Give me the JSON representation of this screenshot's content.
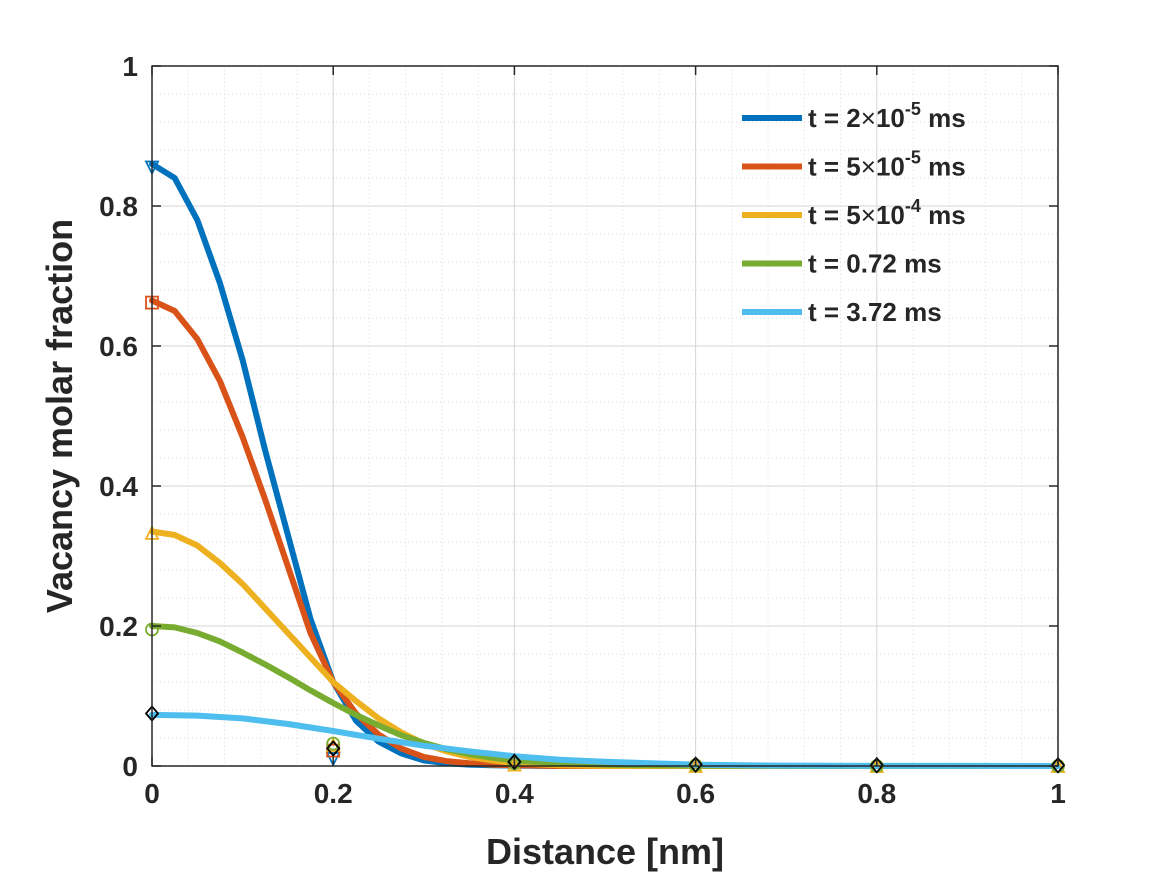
{
  "chart_data": {
    "type": "line",
    "title": "",
    "xlabel": "Distance [nm]",
    "ylabel": "Vacancy molar fraction",
    "xlim": [
      0,
      1
    ],
    "ylim": [
      0,
      1
    ],
    "grid": true,
    "minor_grid": true,
    "legend_position": "top-right",
    "x_ticks": [
      {
        "value": 0,
        "label": "0"
      },
      {
        "value": 0.2,
        "label": "0.2"
      },
      {
        "value": 0.4,
        "label": "0.4"
      },
      {
        "value": 0.6,
        "label": "0.6"
      },
      {
        "value": 0.8,
        "label": "0.8"
      },
      {
        "value": 1,
        "label": "1"
      }
    ],
    "y_ticks": [
      {
        "value": 0,
        "label": "0"
      },
      {
        "value": 0.2,
        "label": "0.2"
      },
      {
        "value": 0.4,
        "label": "0.4"
      },
      {
        "value": 0.6,
        "label": "0.6"
      },
      {
        "value": 0.8,
        "label": "0.8"
      },
      {
        "value": 1,
        "label": "1"
      }
    ],
    "series": [
      {
        "name": "t = 2×10^-5 ms",
        "legend_prefix": "t = 2",
        "legend_times": "×",
        "legend_base": "10",
        "legend_exp": "-5",
        "legend_suffix": " ms",
        "color": "#0072BD",
        "marker": "triangle-down",
        "x": [
          0,
          0.025,
          0.05,
          0.075,
          0.1,
          0.125,
          0.15,
          0.175,
          0.2,
          0.225,
          0.25,
          0.275,
          0.3,
          0.325,
          0.35,
          0.375,
          0.4,
          0.45,
          0.5,
          0.6,
          0.7,
          0.8,
          0.9,
          1.0
        ],
        "y": [
          0.86,
          0.84,
          0.78,
          0.69,
          0.58,
          0.45,
          0.33,
          0.21,
          0.12,
          0.065,
          0.035,
          0.018,
          0.008,
          0.004,
          0.002,
          0.001,
          0.0005,
          0,
          0,
          0,
          0,
          0,
          0,
          0
        ],
        "marker_x": [
          0,
          0.2
        ],
        "marker_y": [
          0.855,
          0.01
        ]
      },
      {
        "name": "t = 5×10^-5 ms",
        "legend_prefix": "t = 5",
        "legend_times": "×",
        "legend_base": "10",
        "legend_exp": "-5",
        "legend_suffix": " ms",
        "color": "#D95319",
        "marker": "square",
        "x": [
          0,
          0.025,
          0.05,
          0.075,
          0.1,
          0.125,
          0.15,
          0.175,
          0.2,
          0.225,
          0.25,
          0.275,
          0.3,
          0.325,
          0.35,
          0.375,
          0.4,
          0.45,
          0.5,
          0.6,
          0.7,
          0.8,
          0.9,
          1.0
        ],
        "y": [
          0.665,
          0.65,
          0.61,
          0.55,
          0.47,
          0.38,
          0.285,
          0.19,
          0.12,
          0.075,
          0.045,
          0.025,
          0.013,
          0.007,
          0.004,
          0.002,
          0.001,
          0,
          0,
          0,
          0,
          0,
          0,
          0
        ],
        "marker_x": [
          0,
          0.2
        ],
        "marker_y": [
          0.662,
          0.022
        ]
      },
      {
        "name": "t = 5×10^-4 ms",
        "legend_prefix": "t = 5",
        "legend_times": "×",
        "legend_base": "10",
        "legend_exp": "-4",
        "legend_suffix": " ms",
        "color": "#EDB120",
        "marker": "triangle-up",
        "x": [
          0,
          0.025,
          0.05,
          0.075,
          0.1,
          0.125,
          0.15,
          0.175,
          0.2,
          0.225,
          0.25,
          0.275,
          0.3,
          0.325,
          0.35,
          0.375,
          0.4,
          0.45,
          0.5,
          0.6,
          0.7,
          0.8,
          0.9,
          1.0
        ],
        "y": [
          0.335,
          0.33,
          0.315,
          0.29,
          0.26,
          0.225,
          0.19,
          0.155,
          0.12,
          0.093,
          0.068,
          0.048,
          0.032,
          0.021,
          0.013,
          0.008,
          0.004,
          0.001,
          0,
          0,
          0,
          0,
          0,
          0
        ],
        "marker_x": [
          0,
          0.2,
          0.4,
          0.6,
          0.8,
          1.0
        ],
        "marker_y": [
          0.333,
          0.03,
          0.002,
          0,
          0,
          0
        ]
      },
      {
        "name": "t = 0.72 ms",
        "legend_prefix": "t = 0.72 ms",
        "legend_times": "",
        "legend_base": "",
        "legend_exp": "",
        "legend_suffix": "",
        "color": "#77AC30",
        "marker": "circle",
        "x": [
          0,
          0.025,
          0.05,
          0.075,
          0.1,
          0.125,
          0.15,
          0.175,
          0.2,
          0.225,
          0.25,
          0.275,
          0.3,
          0.325,
          0.35,
          0.375,
          0.4,
          0.45,
          0.5,
          0.55,
          0.6,
          0.7,
          0.8,
          0.9,
          1.0
        ],
        "y": [
          0.2,
          0.198,
          0.19,
          0.178,
          0.162,
          0.145,
          0.127,
          0.108,
          0.09,
          0.073,
          0.058,
          0.044,
          0.033,
          0.024,
          0.017,
          0.012,
          0.008,
          0.004,
          0.002,
          0.001,
          0.0005,
          0,
          0,
          0,
          0
        ],
        "marker_x": [
          0,
          0.2,
          0.4,
          0.6,
          0.8,
          1.0
        ],
        "marker_y": [
          0.195,
          0.032,
          0.004,
          0.001,
          0,
          0
        ]
      },
      {
        "name": "t = 3.72 ms",
        "legend_prefix": "t = 3.72 ms",
        "legend_times": "",
        "legend_base": "",
        "legend_exp": "",
        "legend_suffix": "",
        "color": "#4DBEEE",
        "marker": "diamond",
        "x": [
          0,
          0.05,
          0.1,
          0.15,
          0.2,
          0.25,
          0.3,
          0.35,
          0.4,
          0.45,
          0.5,
          0.55,
          0.6,
          0.65,
          0.7,
          0.8,
          0.9,
          1.0
        ],
        "y": [
          0.073,
          0.072,
          0.068,
          0.06,
          0.05,
          0.039,
          0.029,
          0.021,
          0.014,
          0.009,
          0.006,
          0.004,
          0.002,
          0.001,
          0.0006,
          0.0002,
          0.0001,
          0
        ],
        "marker_x": [
          0,
          0.2,
          0.4,
          0.6,
          0.8,
          1.0
        ],
        "marker_y": [
          0.075,
          0.025,
          0.006,
          0.002,
          0.001,
          0.001
        ],
        "marker_edge": "#000000"
      }
    ]
  }
}
